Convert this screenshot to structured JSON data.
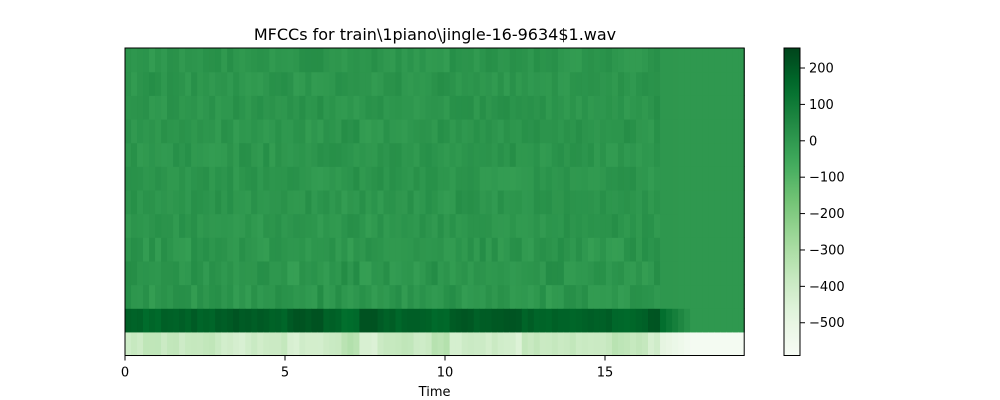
{
  "chart_data": {
    "type": "heatmap",
    "title": "MFCCs for train\\1piano\\jingle-16-9634$1.wav",
    "xlabel": "Time",
    "ylabel": "",
    "xlim": [
      0,
      19.35
    ],
    "x_ticks": [
      0,
      5,
      10,
      15
    ],
    "x_tick_labels": [
      "0",
      "5",
      "10",
      "15"
    ],
    "n_coefficients": 13,
    "n_frames": 103,
    "y_ticks_shown": false,
    "colormap": "Greens",
    "color_range": [
      -590,
      255
    ],
    "colorbar_ticks": [
      250,
      200,
      150,
      100,
      50,
      0,
      -50,
      -100,
      -150,
      -200,
      -250,
      -300,
      -350,
      -400,
      -450,
      -500,
      -550
    ],
    "colorbar_ticks_draw": [
      200,
      100,
      0,
      -100,
      -200,
      -300,
      -400,
      -500
    ],
    "colorbar_tick_labels": [
      "200",
      "100",
      "0",
      "−100",
      "−200",
      "−300",
      "−400",
      "−500"
    ],
    "active_frame_count": 89,
    "row_means": {
      "coefficient_0": -390,
      "coefficient_1": 185,
      "coefficients_2_to_12": 10
    },
    "silence_tail_values": {
      "coefficient_0": -575,
      "coefficient_1": 0,
      "others": 0
    }
  }
}
